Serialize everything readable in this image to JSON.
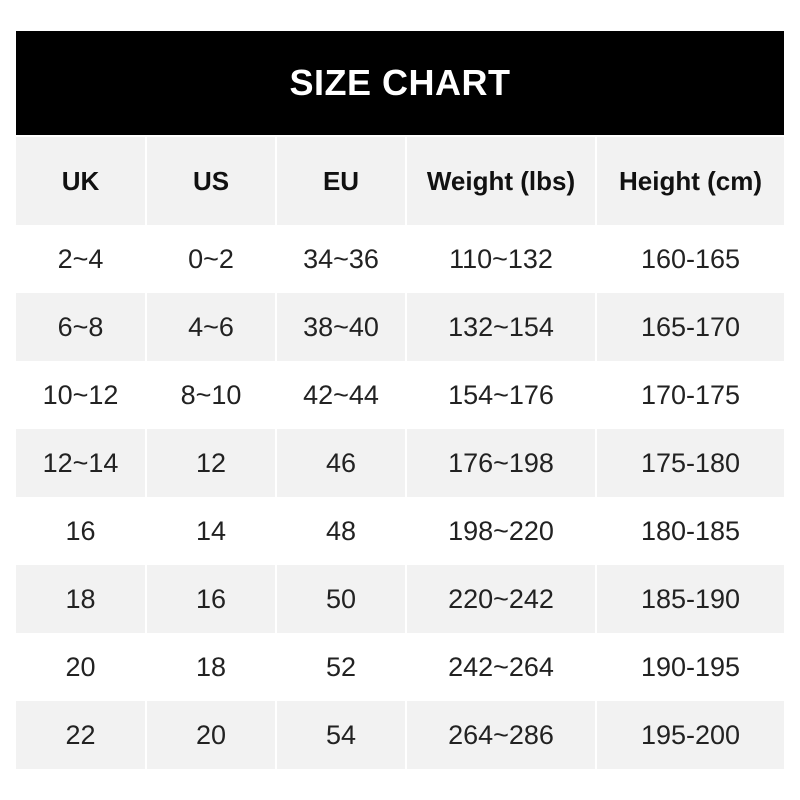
{
  "title": "SIZE CHART",
  "headers": [
    "UK",
    "US",
    "EU",
    "Weight (lbs)",
    "Height (cm)"
  ],
  "rows": [
    [
      "2~4",
      "0~2",
      "34~36",
      "110~132",
      "160-165"
    ],
    [
      "6~8",
      "4~6",
      "38~40",
      "132~154",
      "165-170"
    ],
    [
      "10~12",
      "8~10",
      "42~44",
      "154~176",
      "170-175"
    ],
    [
      "12~14",
      "12",
      "46",
      "176~198",
      "175-180"
    ],
    [
      "16",
      "14",
      "48",
      "198~220",
      "180-185"
    ],
    [
      "18",
      "16",
      "50",
      "220~242",
      "185-190"
    ],
    [
      "20",
      "18",
      "52",
      "242~264",
      "190-195"
    ],
    [
      "22",
      "20",
      "54",
      "264~286",
      "195-200"
    ]
  ],
  "colors": {
    "title_bg": "#000000",
    "stripe": "#f2f2f2"
  }
}
